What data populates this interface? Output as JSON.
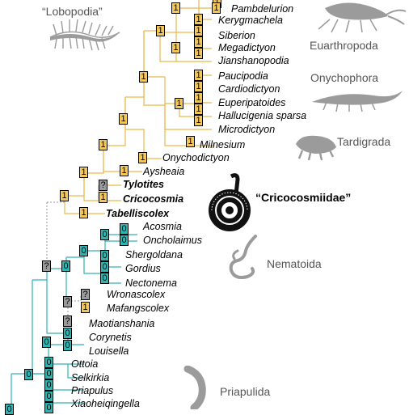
{
  "groups": {
    "lobopodia": "“Lobopodia”",
    "euarthropoda": "Euarthropoda",
    "onychophora": "Onychophora",
    "tardigrada": "Tardigrada",
    "cricocosmiidae": "“Cricocosmiidae”",
    "nematoida": "Nematoida",
    "priapulida": "Priapulida"
  },
  "taxa": {
    "pambdelurion": "Pambdelurion",
    "kerygmachela": "Kerygmachela",
    "siberion": "Siberion",
    "megadictyon": "Megadictyon",
    "jianshanopodia": "Jianshanopodia",
    "paucipodia": "Paucipodia",
    "cardiodictyon": "Cardiodictyon",
    "euperipatoides": "Euperipatoides",
    "hallucigenia": "Hallucigenia sparsa",
    "microdictyon": "Microdictyon",
    "milnesium": "Milnesium",
    "onychodictyon": "Onychodictyon",
    "aysheaia": "Aysheaia",
    "tylotites": "Tylotites",
    "cricocosmia": "Cricocosmia",
    "tabelliscolex": "Tabelliscolex",
    "acosmia": "Acosmia",
    "oncholaimus": "Oncholaimus",
    "shergoldana": "Shergoldana",
    "gordius": "Gordius",
    "nectonema": "Nectonema",
    "wronascolex": "Wronascolex",
    "mafangscolex": "Mafangscolex",
    "maotianshania": "Maotianshania",
    "corynetis": "Corynetis",
    "louisella": "Louisella",
    "ottoia": "Ottoia",
    "selkirkia": "Selkirkia",
    "priapulus": "Priapulus",
    "xiaoheiqingella": "Xiaoheiqingella"
  },
  "badges": {
    "one": "1",
    "zero": "0",
    "unknown": "?"
  },
  "colors": {
    "lobopod": "#f3c75a",
    "cycloneuralian": "#2fb4b2",
    "uncertain": "#9a9a9a",
    "silhouette": "#9b9b9b"
  }
}
